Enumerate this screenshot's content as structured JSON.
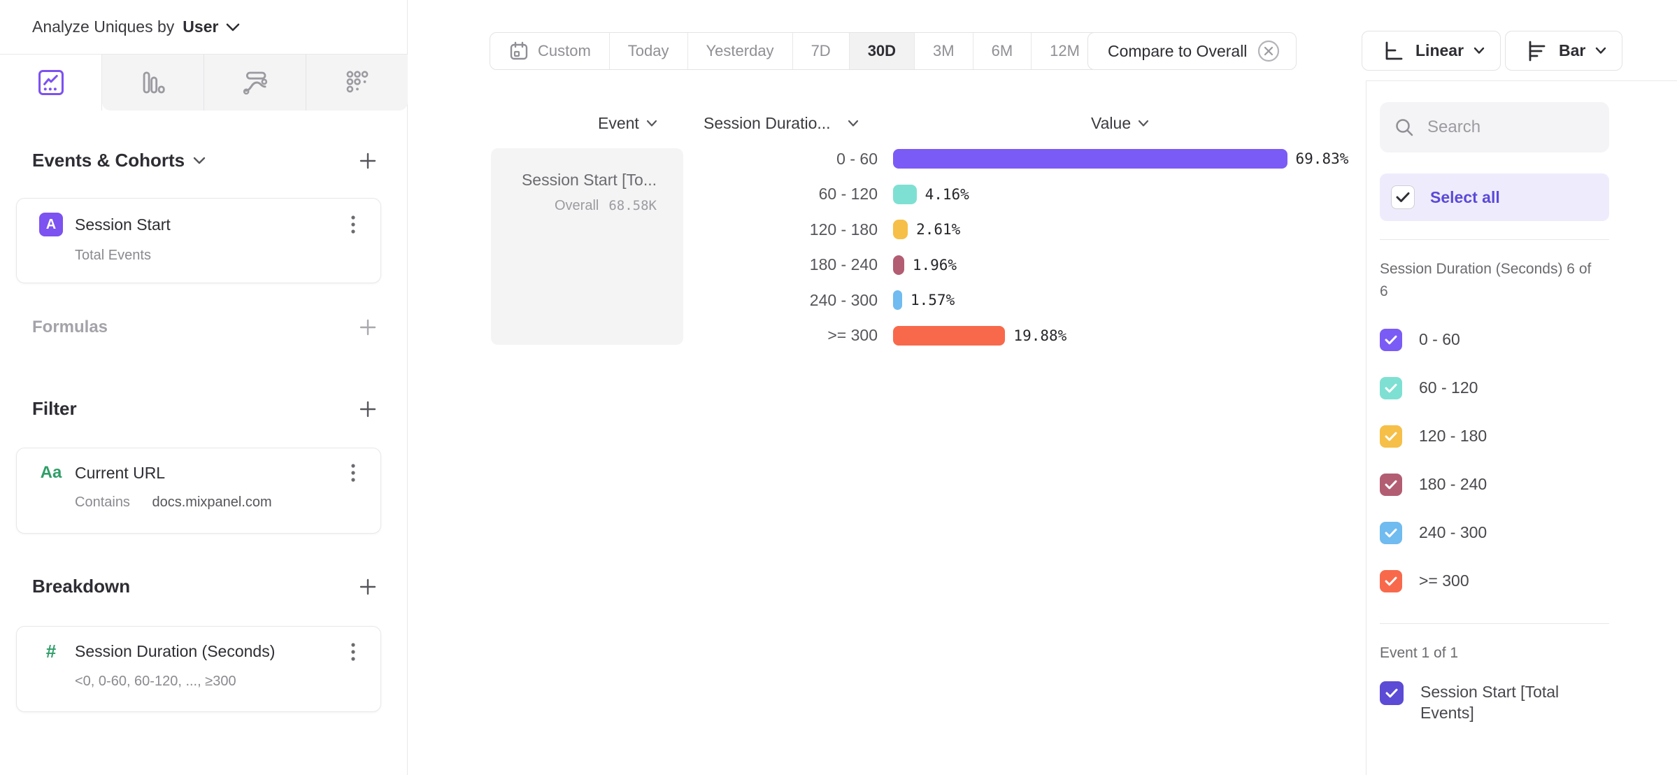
{
  "sidebar": {
    "analyze_prefix": "Analyze Uniques by",
    "analyze_value": "User",
    "events_section": {
      "label": "Events & Cohorts",
      "card": {
        "badge": "A",
        "title": "Session Start",
        "subtitle": "Total Events"
      }
    },
    "formulas_section": {
      "label": "Formulas"
    },
    "filter_section": {
      "label": "Filter",
      "card": {
        "icon_glyph": "Aa",
        "title": "Current URL",
        "operator": "Contains",
        "value": "docs.mixpanel.com"
      }
    },
    "breakdown_section": {
      "label": "Breakdown",
      "card": {
        "icon_glyph": "#",
        "title": "Session Duration (Seconds)",
        "subtitle": "<0, 0-60, 60-120, ..., ≥300"
      }
    }
  },
  "toolbar": {
    "date_ranges": [
      "Custom",
      "Today",
      "Yesterday",
      "7D",
      "30D",
      "3M",
      "6M",
      "12M"
    ],
    "selected_range": "30D",
    "compare_label": "Compare to Overall",
    "scale_label": "Linear",
    "chart_type_label": "Bar"
  },
  "chart": {
    "columns": {
      "event": "Event",
      "breakdown": "Session Duratio...",
      "value": "Value"
    },
    "event_card": {
      "title": "Session Start [To...",
      "overall_label": "Overall",
      "overall_value": "68.58K"
    }
  },
  "chart_data": {
    "type": "bar",
    "orientation": "horizontal",
    "series_name": "Session Start [Total Events]",
    "categories": [
      "0 - 60",
      "60 - 120",
      "120 - 180",
      "180 - 240",
      "240 - 300",
      ">= 300"
    ],
    "values": [
      69.83,
      4.16,
      2.61,
      1.96,
      1.57,
      19.88
    ],
    "value_labels": [
      "69.83%",
      "4.16%",
      "2.61%",
      "1.96%",
      "1.57%",
      "19.88%"
    ],
    "colors": [
      "#7b5bf5",
      "#7ee0d2",
      "#f6bf47",
      "#b25d72",
      "#70bbf0",
      "#f8694b"
    ],
    "unit": "%",
    "xlim": [
      0,
      100
    ],
    "overall_value": "68.58K",
    "grid": false,
    "legend_position": "right-panel"
  },
  "legend_panel": {
    "search_placeholder": "Search",
    "select_all_label": "Select all",
    "group_label": "Session Duration (Seconds) 6 of 6",
    "items": [
      {
        "label": "0 - 60",
        "color": "#7b5bf5",
        "checked": true
      },
      {
        "label": "60 - 120",
        "color": "#7ee0d2",
        "checked": true
      },
      {
        "label": "120 - 180",
        "color": "#f6bf47",
        "checked": true
      },
      {
        "label": "180 - 240",
        "color": "#b25d72",
        "checked": true
      },
      {
        "label": "240 - 300",
        "color": "#70bbf0",
        "checked": true
      },
      {
        "label": ">= 300",
        "color": "#f8694b",
        "checked": true
      }
    ],
    "event_group_label": "Event 1 of 1",
    "event_item": {
      "label": "Session Start [Total Events]",
      "color": "#5b4bd5",
      "checked": true
    }
  }
}
